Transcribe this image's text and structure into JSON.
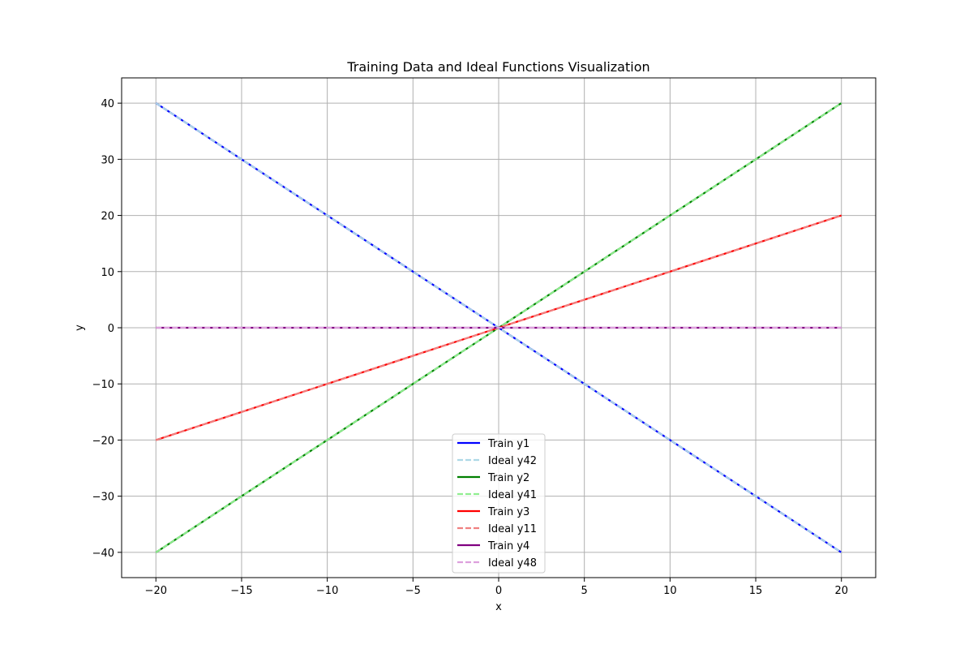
{
  "chart_data": {
    "type": "line",
    "title": "Training Data and Ideal Functions Visualization",
    "xlabel": "x",
    "ylabel": "y",
    "xlim": [
      -22,
      22
    ],
    "ylim": [
      -44.5,
      44.5
    ],
    "xticks": [
      -20,
      -15,
      -10,
      -5,
      0,
      5,
      10,
      15,
      20
    ],
    "xtick_labels": [
      "−20",
      "−15",
      "−10",
      "−5",
      "0",
      "5",
      "10",
      "15",
      "20"
    ],
    "yticks": [
      -40,
      -30,
      -20,
      -10,
      0,
      10,
      20,
      30,
      40
    ],
    "ytick_labels": [
      "−40",
      "−30",
      "−20",
      "−10",
      "0",
      "10",
      "20",
      "30",
      "40"
    ],
    "grid": true,
    "legend_position": "bottom-center",
    "x": [
      -20,
      -15,
      -10,
      -5,
      0,
      5,
      10,
      15,
      20
    ],
    "series": [
      {
        "name": "Train y1",
        "color": "#0000ff",
        "style": "solid",
        "values": [
          40,
          30,
          20,
          10,
          0,
          -10,
          -20,
          -30,
          -40
        ]
      },
      {
        "name": "Ideal y42",
        "color": "#add8e6",
        "style": "dashed",
        "values": [
          40,
          30,
          20,
          10,
          0,
          -10,
          -20,
          -30,
          -40
        ]
      },
      {
        "name": "Train y2",
        "color": "#008000",
        "style": "solid",
        "values": [
          -40,
          -30,
          -20,
          -10,
          0,
          10,
          20,
          30,
          40
        ]
      },
      {
        "name": "Ideal y41",
        "color": "#90ee90",
        "style": "dashed",
        "values": [
          -40,
          -30,
          -20,
          -10,
          0,
          10,
          20,
          30,
          40
        ]
      },
      {
        "name": "Train y3",
        "color": "#ff0000",
        "style": "solid",
        "values": [
          -20,
          -15,
          -10,
          -5,
          0,
          5,
          10,
          15,
          20
        ]
      },
      {
        "name": "Ideal y11",
        "color": "#f08080",
        "style": "dashed",
        "values": [
          -20,
          -15,
          -10,
          -5,
          0,
          5,
          10,
          15,
          20
        ]
      },
      {
        "name": "Train y4",
        "color": "#800080",
        "style": "solid",
        "values": [
          0,
          0,
          0,
          0,
          0,
          0,
          0,
          0,
          0
        ]
      },
      {
        "name": "Ideal y48",
        "color": "#dda0dd",
        "style": "dashed",
        "values": [
          0,
          0,
          0,
          0,
          0,
          0,
          0,
          0,
          0
        ]
      }
    ]
  }
}
